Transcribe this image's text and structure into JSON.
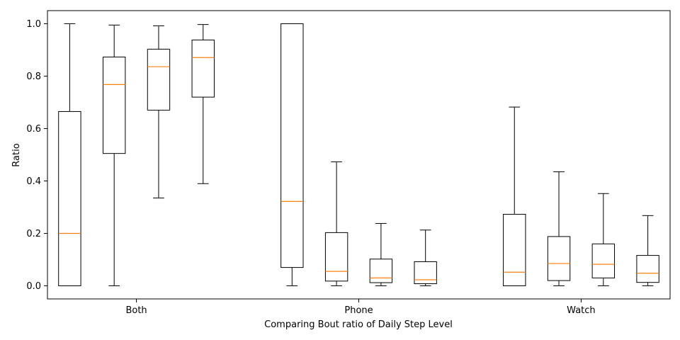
{
  "chart_data": {
    "type": "box",
    "title": "",
    "xlabel": "Comparing Bout ratio of Daily Step Level",
    "ylabel": "Ratio",
    "ylim": [
      -0.05,
      1.05
    ],
    "yticks": [
      "0.0",
      "0.2",
      "0.4",
      "0.6",
      "0.8",
      "1.0"
    ],
    "grid": false,
    "colors": {
      "median": "#ff7f0e",
      "box": "#000000"
    },
    "groups": [
      {
        "label": "Both",
        "boxes": [
          {
            "whislo": 0.0,
            "q1": 0.0,
            "med": 0.2,
            "q3": 0.665,
            "whishi": 1.0
          },
          {
            "whislo": 0.0,
            "q1": 0.505,
            "med": 0.768,
            "q3": 0.873,
            "whishi": 0.995
          },
          {
            "whislo": 0.335,
            "q1": 0.67,
            "med": 0.836,
            "q3": 0.903,
            "whishi": 0.992
          },
          {
            "whislo": 0.39,
            "q1": 0.72,
            "med": 0.871,
            "q3": 0.938,
            "whishi": 0.997
          }
        ]
      },
      {
        "label": "Phone",
        "boxes": [
          {
            "whislo": 0.0,
            "q1": 0.07,
            "med": 0.322,
            "q3": 1.0,
            "whishi": 1.0
          },
          {
            "whislo": 0.0,
            "q1": 0.018,
            "med": 0.055,
            "q3": 0.203,
            "whishi": 0.473
          },
          {
            "whislo": 0.0,
            "q1": 0.012,
            "med": 0.03,
            "q3": 0.102,
            "whishi": 0.238
          },
          {
            "whislo": 0.0,
            "q1": 0.008,
            "med": 0.023,
            "q3": 0.092,
            "whishi": 0.213
          }
        ]
      },
      {
        "label": "Watch",
        "boxes": [
          {
            "whislo": 0.0,
            "q1": 0.0,
            "med": 0.052,
            "q3": 0.273,
            "whishi": 0.682
          },
          {
            "whislo": 0.0,
            "q1": 0.02,
            "med": 0.085,
            "q3": 0.188,
            "whishi": 0.435
          },
          {
            "whislo": 0.0,
            "q1": 0.03,
            "med": 0.082,
            "q3": 0.16,
            "whishi": 0.352
          },
          {
            "whislo": 0.0,
            "q1": 0.013,
            "med": 0.048,
            "q3": 0.116,
            "whishi": 0.268
          }
        ]
      }
    ]
  }
}
